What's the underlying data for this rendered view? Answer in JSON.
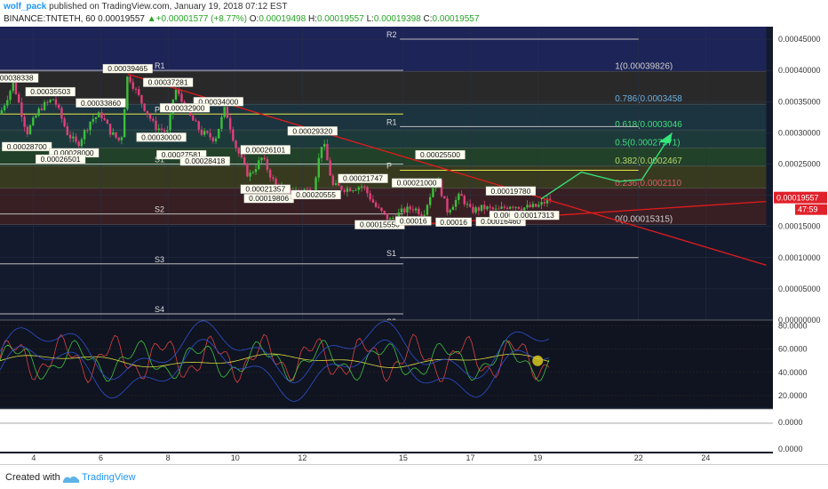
{
  "header": {
    "user": "wolf_pack",
    "published": " published on TradingView.com, January 19, 2018 07:12 EST",
    "symbol": "BINANCE:TNTETH, 60",
    "last": "0.00019557",
    "change": "+0.00001577 (+8.77%)",
    "ohlc_o": "O:",
    "o": "0.00019498",
    "ohlc_h": "H:",
    "h": "0.00019557",
    "ohlc_l": "L:",
    "l": "0.00019398",
    "ohlc_c": "C:",
    "c": "0.00019557"
  },
  "footer": {
    "created_with": "Created with",
    "brand": "TradingView"
  },
  "colors": {
    "up": "#27a327",
    "down": "#c21e3a",
    "bg": "#0d1a2a",
    "fib_green": "#3fe27a"
  },
  "chart_data": {
    "type": "candlestick",
    "x_ticks": [
      "4",
      "6",
      "8",
      "10",
      "12",
      "15",
      "17",
      "19",
      "22",
      "24"
    ],
    "y_ticks": [
      "0.00045000",
      "0.00040000",
      "0.00035000",
      "0.00030000",
      "0.00025000",
      "0.00020000",
      "0.00015000",
      "0.00010000",
      "0.00005000",
      "0.00000000"
    ],
    "ylim": [
      0,
      0.00047
    ],
    "price_label": "0.00019557",
    "countdown": "47:59",
    "fib_levels": [
      {
        "label": "1(0.00039826)",
        "value": 0.00039826
      },
      {
        "label": "0.786(0.0003458",
        "value": 0.0003458
      },
      {
        "label": "0.618(0.0003046",
        "value": 0.0003046
      },
      {
        "label": "0.5(0.00027571)",
        "value": 0.00027571
      },
      {
        "label": "0.382(0.0002467",
        "value": 0.0002467
      },
      {
        "label": "0.236(0.0002110",
        "value": 0.000211
      },
      {
        "label": "0(0.00015315)",
        "value": 0.00015315
      }
    ],
    "pivots_left": [
      {
        "label": "R1",
        "value": 0.0004
      },
      {
        "label": "P",
        "value": 0.00033
      },
      {
        "label": "S1",
        "value": 0.00025
      },
      {
        "label": "S2",
        "value": 0.00017
      },
      {
        "label": "S3",
        "value": 9e-05
      },
      {
        "label": "S4",
        "value": 1e-05
      }
    ],
    "pivots_right": [
      {
        "label": "R2",
        "value": 0.00045
      },
      {
        "label": "R1",
        "value": 0.00031
      },
      {
        "label": "P",
        "value": 0.00024
      },
      {
        "label": "S1",
        "value": 0.0001
      },
      {
        "label": "S2",
        "value": -3e-05
      }
    ],
    "price_labels": [
      {
        "text": "0.00038338",
        "x": 3.4,
        "y": 0.000385
      },
      {
        "text": "0.00039465",
        "x": 6.8,
        "y": 0.0004
      },
      {
        "text": "0.00035503",
        "x": 4.5,
        "y": 0.000363
      },
      {
        "text": "0.00037281",
        "x": 8.0,
        "y": 0.000378
      },
      {
        "text": "0.00033860",
        "x": 6.0,
        "y": 0.000345
      },
      {
        "text": "0.00034000",
        "x": 9.5,
        "y": 0.000347
      },
      {
        "text": "0.00032900",
        "x": 8.5,
        "y": 0.000337
      },
      {
        "text": "0.00030000",
        "x": 7.8,
        "y": 0.00029
      },
      {
        "text": "0.00028700",
        "x": 3.8,
        "y": 0.000275
      },
      {
        "text": "0.00028000",
        "x": 5.2,
        "y": 0.000265
      },
      {
        "text": "0.00026501",
        "x": 4.8,
        "y": 0.000255
      },
      {
        "text": "0.00027581",
        "x": 8.4,
        "y": 0.000262
      },
      {
        "text": "0.00028418",
        "x": 9.1,
        "y": 0.000252
      },
      {
        "text": "0.00026101",
        "x": 10.9,
        "y": 0.00027
      },
      {
        "text": "0.00029320",
        "x": 12.3,
        "y": 0.0003
      },
      {
        "text": "0.00021357",
        "x": 10.9,
        "y": 0.000207
      },
      {
        "text": "0.00019806",
        "x": 11.0,
        "y": 0.000192
      },
      {
        "text": "0.00020555",
        "x": 12.4,
        "y": 0.000198
      },
      {
        "text": "0.00021747",
        "x": 13.8,
        "y": 0.000224
      },
      {
        "text": "0.00021000",
        "x": 15.4,
        "y": 0.000217
      },
      {
        "text": "0.00025500",
        "x": 16.1,
        "y": 0.000262
      },
      {
        "text": "0.00019780",
        "x": 18.2,
        "y": 0.000204
      },
      {
        "text": "0.00015550",
        "x": 14.3,
        "y": 0.00015
      },
      {
        "text": "0.00016",
        "x": 15.3,
        "y": 0.000156
      },
      {
        "text": "0.00016",
        "x": 16.5,
        "y": 0.000154
      },
      {
        "text": "0.00016460",
        "x": 17.9,
        "y": 0.000155
      },
      {
        "text": "0.00017",
        "x": 18.1,
        "y": 0.000165
      },
      {
        "text": "0.00017313",
        "x": 18.9,
        "y": 0.000165
      }
    ],
    "oscillator": {
      "ylim": [
        10,
        85
      ],
      "ticks": [
        "80.0000",
        "60.0000",
        "40.0000",
        "20.0000"
      ]
    },
    "oscillator2": {
      "ticks": [
        "0.0000",
        "0.0000"
      ]
    }
  }
}
